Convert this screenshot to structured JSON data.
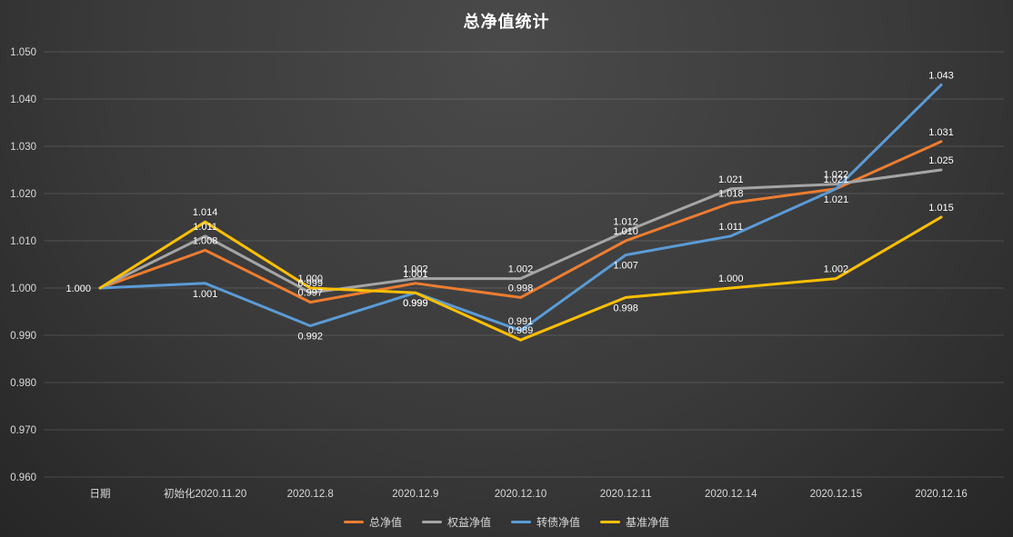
{
  "chart_data": {
    "type": "line",
    "title": "总净值统计",
    "categories": [
      "日期",
      "初始化2020.11.20",
      "2020.12.8",
      "2020.12.9",
      "2020.12.10",
      "2020.12.11",
      "2020.12.14",
      "2020.12.15",
      "2020.12.16"
    ],
    "y_ticks": [
      "1.050",
      "1.040",
      "1.030",
      "1.020",
      "1.010",
      "1.000",
      "0.990",
      "0.980",
      "0.970",
      "0.960"
    ],
    "ylim": [
      0.96,
      1.05
    ],
    "grid": true,
    "legend_position": "bottom",
    "label_format": "0.000",
    "series": [
      {
        "name": "总净值",
        "color": "#ED7D31",
        "values": [
          1.0,
          1.008,
          0.997,
          1.001,
          0.998,
          1.01,
          1.018,
          1.021,
          1.031
        ],
        "label_pos": [
          "l",
          "a",
          "a",
          "a",
          "a",
          "a",
          "a",
          "a",
          "a"
        ]
      },
      {
        "name": "权益净值",
        "color": "#A5A5A5",
        "values": [
          1.0,
          1.011,
          0.999,
          1.002,
          1.002,
          1.012,
          1.021,
          1.022,
          1.025
        ],
        "label_pos": [
          "-",
          "a",
          "a",
          "a",
          "a",
          "a",
          "a",
          "a",
          "a"
        ]
      },
      {
        "name": "转债净值",
        "color": "#5B9BD5",
        "values": [
          1.0,
          1.001,
          0.992,
          0.999,
          0.991,
          1.007,
          1.011,
          1.021,
          1.043
        ],
        "label_pos": [
          "-",
          "b",
          "b",
          "b",
          "a",
          "b",
          "a",
          "b",
          "a"
        ]
      },
      {
        "name": "基准净值",
        "color": "#FFC000",
        "values": [
          1.0,
          1.014,
          1.0,
          0.999,
          0.989,
          0.998,
          1.0,
          1.002,
          1.015
        ],
        "label_pos": [
          "-",
          "a",
          "a",
          "b",
          "a",
          "b",
          "a",
          "a",
          "a"
        ]
      }
    ]
  }
}
